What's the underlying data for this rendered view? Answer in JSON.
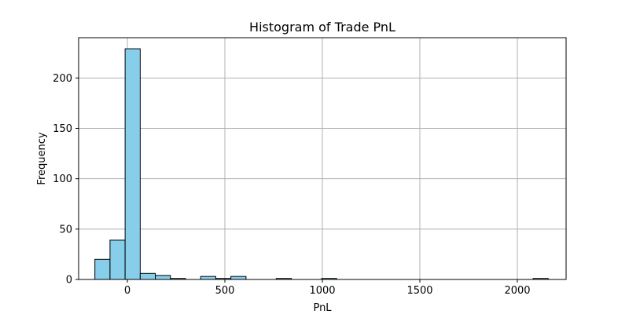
{
  "chart_data": {
    "type": "bar",
    "title": "Histogram of Trade PnL",
    "xlabel": "PnL",
    "ylabel": "Frequency",
    "bar_color": "#87ceeb",
    "edge_color": "#000000",
    "grid": true,
    "xlim": [
      -250,
      2250
    ],
    "ylim": [
      0,
      240
    ],
    "xticks": [
      0,
      500,
      1000,
      1500,
      2000
    ],
    "yticks": [
      0,
      50,
      100,
      150,
      200
    ],
    "bin_edges": [
      -166.6,
      -89.1,
      -11.6,
      65.9,
      143.4,
      220.9,
      298.4,
      375.9,
      453.4,
      530.9,
      608.4,
      685.9,
      763.4,
      840.9,
      918.4,
      995.9,
      1073.4,
      1150.9,
      1228.4,
      1305.9,
      1383.4,
      1460.9,
      1538.4,
      1615.9,
      1693.4,
      1770.9,
      1848.4,
      1925.9,
      2003.4,
      2080.9,
      2158.4
    ],
    "counts": [
      20,
      39,
      229,
      6,
      4,
      1,
      0,
      3,
      1,
      3,
      0,
      0,
      1,
      0,
      0,
      1,
      0,
      0,
      0,
      0,
      0,
      0,
      0,
      0,
      0,
      0,
      0,
      0,
      0,
      1
    ]
  }
}
